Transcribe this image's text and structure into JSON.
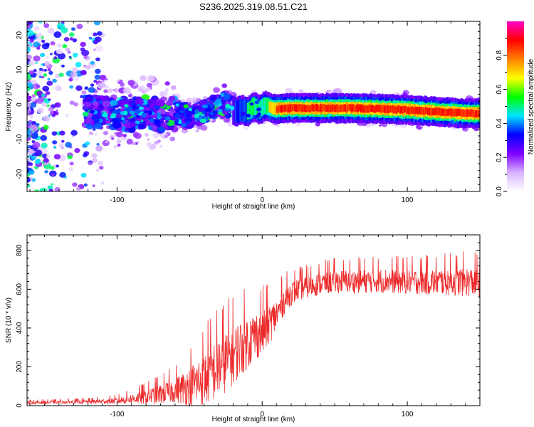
{
  "title": "S236.2025.319.08.51.C21",
  "chart_data": [
    {
      "type": "heatmap",
      "xlabel": "Height of straight line (km)",
      "ylabel": "Frequency (Hz)",
      "xlim": [
        -162,
        150
      ],
      "ylim": [
        -25,
        24
      ],
      "xticks": [
        -100,
        0,
        100
      ],
      "yticks": [
        20,
        10,
        0,
        -10,
        -20
      ],
      "ridge": {
        "x": [
          -115,
          -100,
          -90,
          -80,
          -70,
          -60,
          -50,
          -42,
          -35,
          -30,
          -26,
          -22,
          -18,
          -14,
          -10,
          -6,
          -2,
          2,
          6,
          10,
          20,
          40,
          60,
          80,
          100,
          120,
          140,
          148
        ],
        "frequency": [
          -2,
          -2.5,
          -3,
          -2,
          -3,
          -2,
          -3.5,
          -2.5,
          -1,
          0,
          0.6,
          -0.8,
          -2,
          -1.5,
          -2,
          -0.5,
          -1.5,
          -0.3,
          -1,
          -1.2,
          -1,
          -1,
          -1,
          -1.2,
          -1.5,
          -2,
          -2.5,
          -2.5
        ]
      },
      "colorbar": {
        "label": "Normalized spectral amplitude",
        "ticks": [
          0,
          0.2,
          0.4,
          0.6,
          0.8
        ],
        "tick_labels": [
          "0.0",
          "0.2",
          "0.4",
          "0.6",
          "0.8"
        ],
        "range": [
          0,
          1
        ],
        "colors": [
          "#ffffff",
          "#d9b3ff",
          "#7f00ff",
          "#0000ff",
          "#00e5ff",
          "#00ff00",
          "#ffff00",
          "#ff8000",
          "#ff0000",
          "#ff00c8"
        ]
      }
    },
    {
      "type": "line",
      "xlabel": "Height of straight line (km)",
      "ylabel": "SNR (10 * v/v)",
      "xlim": [
        -162,
        150
      ],
      "ylim": [
        0,
        880
      ],
      "xticks": [
        -100,
        0,
        100
      ],
      "yticks": [
        0,
        200,
        400,
        600,
        800
      ],
      "color": "#ee2a2a",
      "series": [
        {
          "name": "SNR",
          "x": [
            -162,
            -140,
            -120,
            -110,
            -100,
            -90,
            -80,
            -70,
            -60,
            -50,
            -40,
            -35,
            -30,
            -25,
            -20,
            -15,
            -10,
            -5,
            0,
            5,
            10,
            15,
            20,
            25,
            30,
            40,
            50,
            60,
            80,
            100,
            120,
            140,
            150
          ],
          "baseline": [
            15,
            18,
            20,
            22,
            25,
            35,
            45,
            60,
            80,
            100,
            140,
            170,
            200,
            230,
            260,
            300,
            330,
            360,
            380,
            420,
            470,
            540,
            580,
            600,
            610,
            630,
            640,
            640,
            645,
            640,
            640,
            640,
            635
          ],
          "noise_amplitude": [
            12,
            12,
            15,
            20,
            25,
            40,
            60,
            80,
            100,
            160,
            220,
            240,
            250,
            250,
            240,
            230,
            220,
            200,
            190,
            160,
            130,
            110,
            100,
            90,
            90,
            90,
            95,
            95,
            100,
            100,
            110,
            120,
            120
          ],
          "samples": 1400
        }
      ]
    }
  ]
}
